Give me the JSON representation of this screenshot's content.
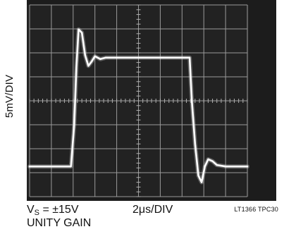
{
  "chart_data": {
    "type": "line",
    "ylabel": "5mV/DIV",
    "xlabel": "2μs/DIV",
    "conditions": {
      "supply_prefix": "V",
      "supply_sub": "S",
      "supply_suffix": " = ±15V",
      "gain": "UNITY GAIN"
    },
    "figure_id": "LT1366 TPC30",
    "xlim": [
      0,
      20
    ],
    "ylim": [
      -20,
      20
    ],
    "grid": true,
    "series": [
      {
        "x": [
          0,
          3.8,
          4.1,
          4.3,
          4.5,
          4.8,
          5.1,
          5.4,
          5.7,
          6.0,
          6.5,
          7.0,
          8.0,
          10.0,
          13.0,
          14.7,
          14.9,
          15.2,
          15.5,
          15.8,
          16.1,
          16.4,
          16.8,
          17.2,
          18.0,
          20.0
        ],
        "y": [
          -13.7,
          -13.7,
          -5,
          7,
          14.9,
          14.2,
          9.5,
          7.3,
          8.2,
          9.3,
          8.7,
          9.0,
          9.0,
          9.0,
          9.0,
          9.0,
          0,
          -9.0,
          -15.6,
          -17.0,
          -13.7,
          -12.2,
          -12.6,
          -13.4,
          -13.7,
          -13.7
        ]
      }
    ]
  }
}
